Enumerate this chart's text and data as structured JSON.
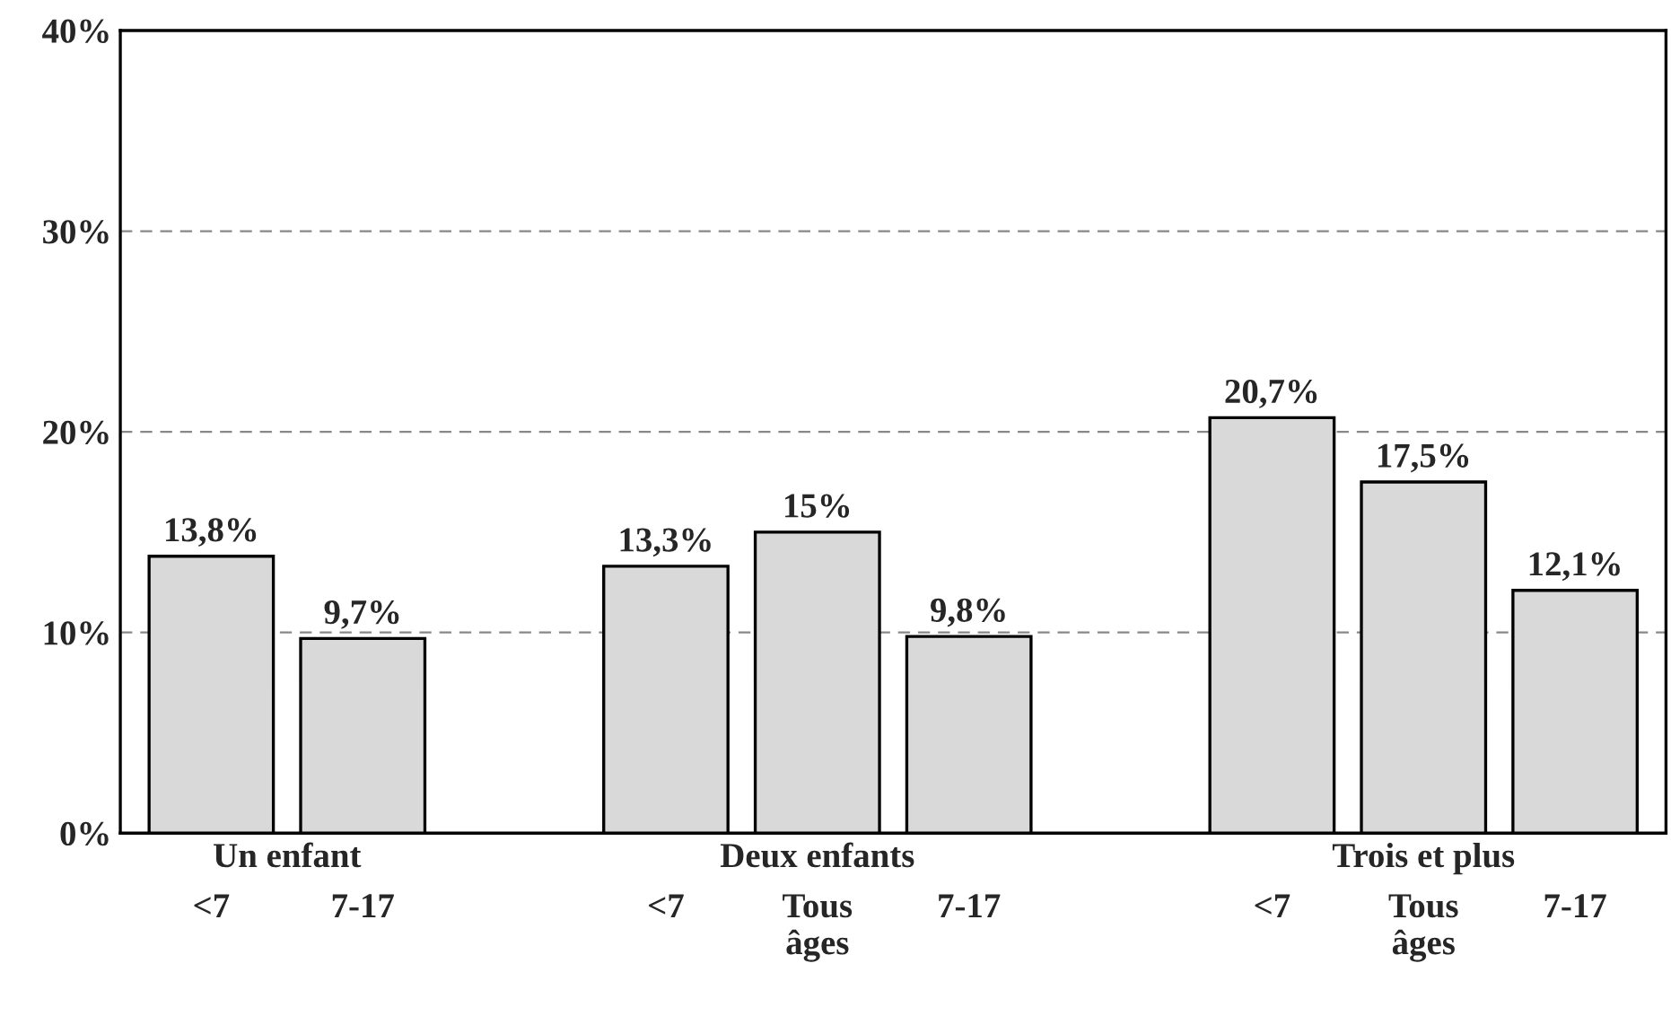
{
  "chart_data": {
    "type": "bar",
    "categories": [
      "<7",
      "7-17",
      null,
      "<7",
      "Tous âges",
      "7-17",
      null,
      "<7",
      "Tous âges",
      "7-17"
    ],
    "values": [
      13.8,
      9.7,
      null,
      13.3,
      15,
      9.8,
      null,
      20.7,
      17.5,
      12.1
    ],
    "value_labels": [
      "13,8%",
      "9,7%",
      null,
      "13,3%",
      "15%",
      "9,8%",
      null,
      "20,7%",
      "17,5%",
      "12,1%"
    ],
    "color": "#d9d9d9",
    "ylim": [
      0,
      40
    ],
    "yticks": [
      {
        "value": 0,
        "label": "0%"
      },
      {
        "value": 10,
        "label": "10%"
      },
      {
        "value": 20,
        "label": "20%"
      },
      {
        "value": 30,
        "label": "30%"
      },
      {
        "value": 40,
        "label": "40%"
      }
    ],
    "grid": "y",
    "annotations": [
      "Un enfant",
      "Deux enfants",
      "Trois et plus"
    ]
  }
}
